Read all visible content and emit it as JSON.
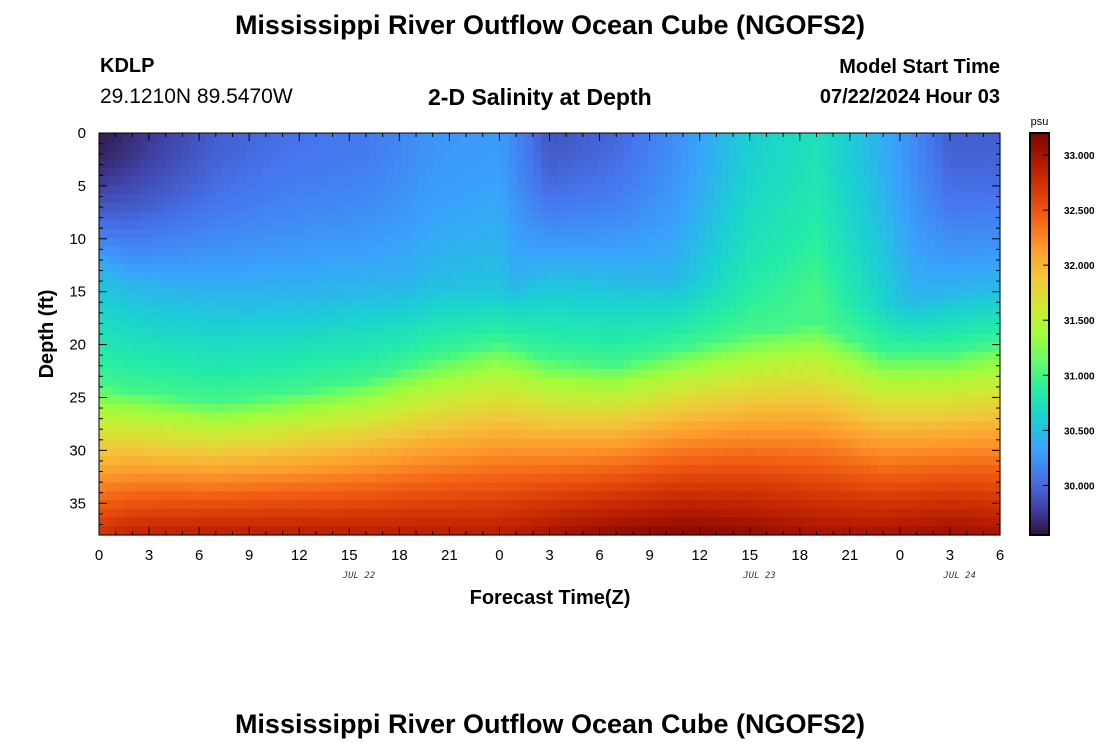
{
  "header": {
    "title": "Mississippi River Outflow Ocean Cube (NGOFS2)",
    "station_id": "KDLP",
    "station_coords": "29.1210N  89.5470W",
    "subtitle": "2-D Salinity at Depth",
    "model_start_label": "Model Start Time",
    "model_start_value": "07/22/2024 Hour 03"
  },
  "footer": {
    "title": "Mississippi River Outflow Ocean Cube (NGOFS2)"
  },
  "chart_data": {
    "type": "heatmap",
    "xlabel": "Forecast Time(Z)",
    "ylabel": "Depth (ft)",
    "x_tick_labels": [
      "0",
      "3",
      "6",
      "9",
      "12",
      "15",
      "18",
      "21",
      "0",
      "3",
      "6",
      "9",
      "12",
      "15",
      "18",
      "21",
      "0",
      "3",
      "6"
    ],
    "x_date_labels": [
      {
        "label": "JUL 22",
        "hour": 16
      },
      {
        "label": "JUL 23",
        "hour": 40
      },
      {
        "label": "JUL 24",
        "hour": 52
      }
    ],
    "xlim_hours": [
      0,
      54
    ],
    "ylim_ft": [
      0,
      38
    ],
    "y_ticks": [
      0,
      5,
      10,
      15,
      20,
      25,
      30,
      35
    ],
    "y_inverted": true,
    "colorbar": {
      "unit": "psu",
      "range": [
        29.55,
        33.2
      ],
      "ticks": [
        "30.000",
        "30.500",
        "31.000",
        "31.500",
        "32.000",
        "32.500",
        "33.000"
      ],
      "colormap": [
        "#30123b",
        "#4145ab",
        "#4675ed",
        "#39a2fc",
        "#1bcfd4",
        "#24eca6",
        "#61fc6c",
        "#a4fc3b",
        "#d1e834",
        "#f3c63a",
        "#fe9b2d",
        "#f36315",
        "#d93806",
        "#b11901",
        "#7a0403"
      ]
    },
    "anchors": {
      "hours": [
        0,
        2,
        7,
        11,
        16,
        20,
        24,
        27,
        31,
        35,
        39,
        43,
        47,
        51,
        54
      ],
      "surface_salinity": [
        29.6,
        29.7,
        29.95,
        30.05,
        30.1,
        30.25,
        30.3,
        29.9,
        30.0,
        30.25,
        30.6,
        30.75,
        30.4,
        29.95,
        29.95
      ],
      "mixed_layer_depth_ft": [
        13,
        14.5,
        15.5,
        15.5,
        14.8,
        14.5,
        15,
        13,
        13.5,
        14,
        14.5,
        15,
        16.5,
        15,
        14.5
      ],
      "isohaline_31_depth_ft": [
        24,
        24.5,
        25.5,
        24.8,
        23.5,
        21.5,
        20,
        21.5,
        22,
        20.5,
        19,
        18,
        21,
        21,
        20
      ],
      "bottom_salinity": [
        32.75,
        32.85,
        32.9,
        32.9,
        32.9,
        32.9,
        32.9,
        33.0,
        33.1,
        33.15,
        33.1,
        33.0,
        33.0,
        33.05,
        33.0
      ]
    }
  }
}
